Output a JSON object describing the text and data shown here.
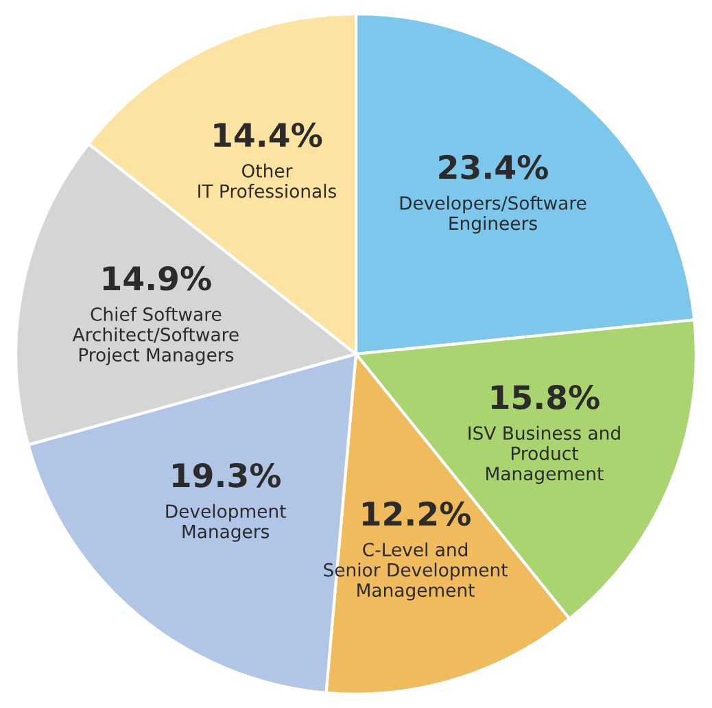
{
  "chart_data": {
    "type": "pie",
    "categories": [
      "Developers/Software\nEngineers",
      "ISV Business and\nProduct\nManagement",
      "C-Level and\nSenior Development\nManagement",
      "Development\nManagers",
      "Chief Software\nArchitect/Software\nProject Managers",
      "Other\nIT Professionals"
    ],
    "values": [
      23.4,
      15.8,
      12.2,
      19.3,
      14.9,
      14.4
    ],
    "value_labels": [
      "23.4%",
      "15.8%",
      "12.2%",
      "19.3%",
      "14.9%",
      "14.4%"
    ],
    "colors": [
      "#7dc6ec",
      "#a9d46f",
      "#efbb5c",
      "#b1c5e7",
      "#d5d5d5",
      "#fde3a1"
    ]
  }
}
